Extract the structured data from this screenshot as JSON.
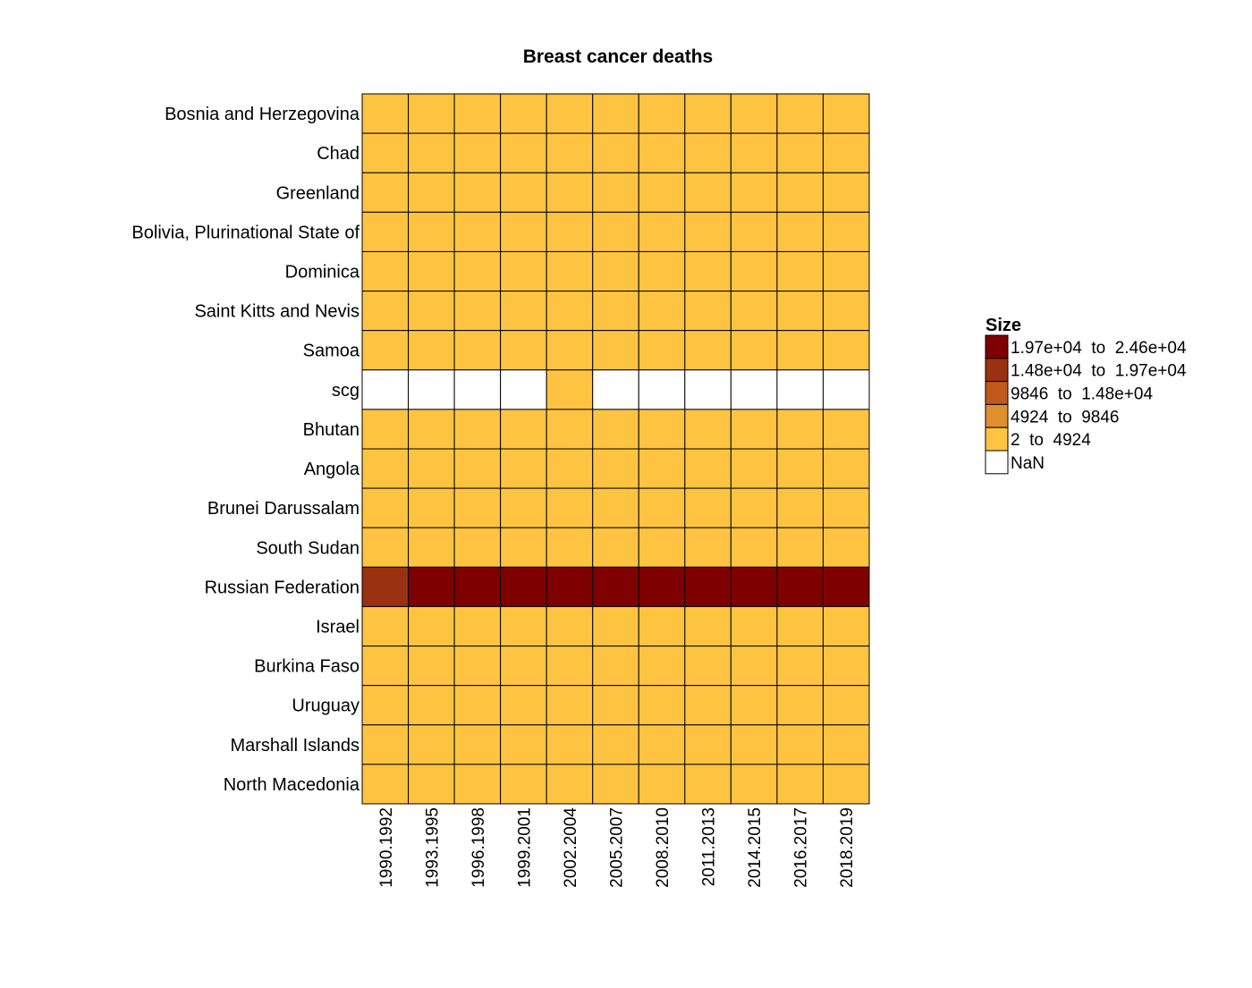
{
  "chart_data": {
    "type": "heatmap",
    "title": "Breast cancer deaths",
    "rows": [
      "Bosnia and Herzegovina",
      "Chad",
      "Greenland",
      "Bolivia, Plurinational State of",
      "Dominica",
      "Saint Kitts and Nevis",
      "Samoa",
      "scg",
      "Bhutan",
      "Angola",
      "Brunei Darussalam",
      "South Sudan",
      "Russian Federation",
      "Israel",
      "Burkina Faso",
      "Uruguay",
      "Marshall Islands",
      "North Macedonia"
    ],
    "columns": [
      "1990.1992",
      "1993.1995",
      "1996.1998",
      "1999.2001",
      "2002.2004",
      "2005.2007",
      "2008.2010",
      "2011.2013",
      "2014.2015",
      "2016.2017",
      "2018.2019"
    ],
    "bins": [
      {
        "label": "1.97e+04  to  2.46e+04",
        "color": "#7f0000"
      },
      {
        "label": "1.48e+04  to  1.97e+04",
        "color": "#9a3110"
      },
      {
        "label": "9846  to  1.48e+04",
        "color": "#c05a1c"
      },
      {
        "label": "4924  to  9846",
        "color": "#e08f2e"
      },
      {
        "label": "2  to  4924",
        "color": "#fec441"
      },
      {
        "label": "NaN",
        "color": "#ffffff"
      }
    ],
    "legend_title": "Size",
    "legend_position": "right",
    "cell_bins": [
      [
        4,
        4,
        4,
        4,
        4,
        4,
        4,
        4,
        4,
        4,
        4
      ],
      [
        4,
        4,
        4,
        4,
        4,
        4,
        4,
        4,
        4,
        4,
        4
      ],
      [
        4,
        4,
        4,
        4,
        4,
        4,
        4,
        4,
        4,
        4,
        4
      ],
      [
        4,
        4,
        4,
        4,
        4,
        4,
        4,
        4,
        4,
        4,
        4
      ],
      [
        4,
        4,
        4,
        4,
        4,
        4,
        4,
        4,
        4,
        4,
        4
      ],
      [
        4,
        4,
        4,
        4,
        4,
        4,
        4,
        4,
        4,
        4,
        4
      ],
      [
        4,
        4,
        4,
        4,
        4,
        4,
        4,
        4,
        4,
        4,
        4
      ],
      [
        5,
        5,
        5,
        5,
        4,
        5,
        5,
        5,
        5,
        5,
        5
      ],
      [
        4,
        4,
        4,
        4,
        4,
        4,
        4,
        4,
        4,
        4,
        4
      ],
      [
        4,
        4,
        4,
        4,
        4,
        4,
        4,
        4,
        4,
        4,
        4
      ],
      [
        4,
        4,
        4,
        4,
        4,
        4,
        4,
        4,
        4,
        4,
        4
      ],
      [
        4,
        4,
        4,
        4,
        4,
        4,
        4,
        4,
        4,
        4,
        4
      ],
      [
        1,
        0,
        0,
        0,
        0,
        0,
        0,
        0,
        0,
        0,
        0
      ],
      [
        4,
        4,
        4,
        4,
        4,
        4,
        4,
        4,
        4,
        4,
        4
      ],
      [
        4,
        4,
        4,
        4,
        4,
        4,
        4,
        4,
        4,
        4,
        4
      ],
      [
        4,
        4,
        4,
        4,
        4,
        4,
        4,
        4,
        4,
        4,
        4
      ],
      [
        4,
        4,
        4,
        4,
        4,
        4,
        4,
        4,
        4,
        4,
        4
      ],
      [
        4,
        4,
        4,
        4,
        4,
        4,
        4,
        4,
        4,
        4,
        4
      ]
    ]
  }
}
